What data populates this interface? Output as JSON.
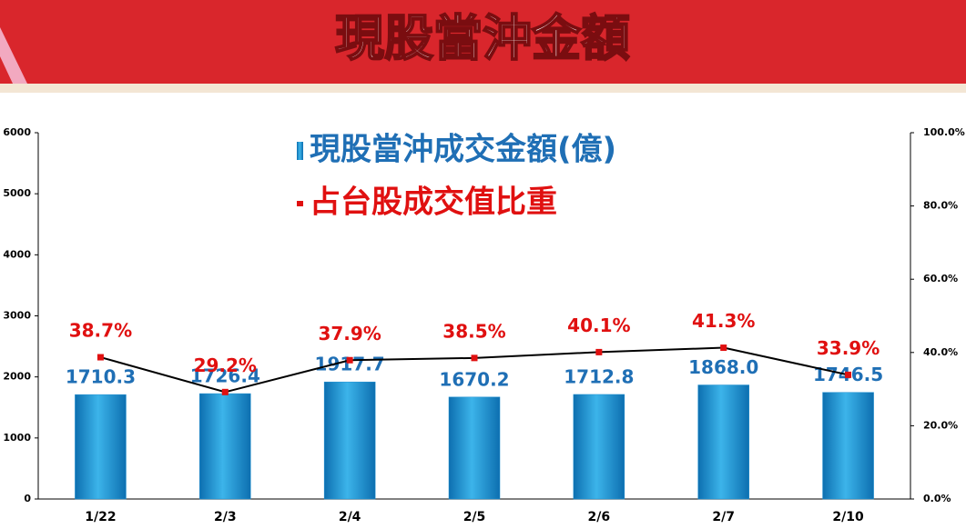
{
  "chart_data": {
    "type": "bar-line",
    "title": "現股當沖金額",
    "categories": [
      "1/22",
      "2/3",
      "2/4",
      "2/5",
      "2/6",
      "2/7",
      "2/10"
    ],
    "series": [
      {
        "name": "現股當沖成交金額(億)",
        "type": "bar",
        "color": "#1e8fd0",
        "label_color": "#1f6fb5",
        "values": [
          1710.3,
          1726.4,
          1917.7,
          1670.2,
          1712.8,
          1868.0,
          1746.5
        ],
        "value_labels": [
          "1710.3",
          "1726.4",
          "1917.7",
          "1670.2",
          "1712.8",
          "1868.0",
          "1746.5"
        ]
      },
      {
        "name": "占台股成交值比重",
        "type": "line",
        "axis": "y2",
        "color": "#000000",
        "marker_color": "#e01010",
        "label_color": "#e01010",
        "values": [
          38.7,
          29.2,
          37.9,
          38.5,
          40.1,
          41.3,
          33.9
        ],
        "value_labels": [
          "38.7%",
          "29.2%",
          "37.9%",
          "38.5%",
          "40.1%",
          "41.3%",
          "33.9%"
        ]
      }
    ],
    "ylim": [
      0,
      6000
    ],
    "yticks": [
      0,
      1000,
      2000,
      3000,
      4000,
      5000,
      6000
    ],
    "y2lim": [
      0,
      100
    ],
    "y2ticks": [
      {
        "value": 0,
        "label": "0.0%"
      },
      {
        "value": 20,
        "label": "20.0%"
      },
      {
        "value": 40,
        "label": "40.0%"
      },
      {
        "value": 60,
        "label": "60.0%"
      },
      {
        "value": 80,
        "label": "80.0%"
      },
      {
        "value": 100,
        "label": "100.0%"
      }
    ],
    "grid": false
  }
}
